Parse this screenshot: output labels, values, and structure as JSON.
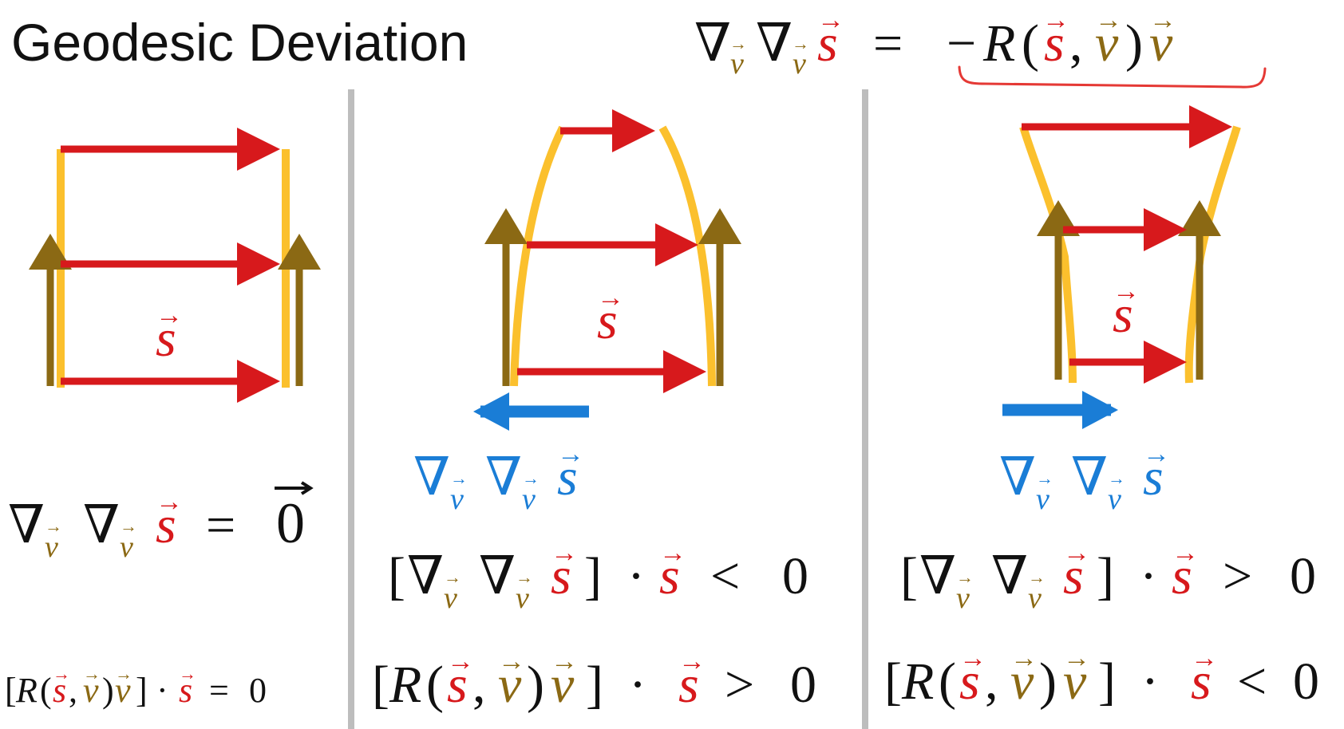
{
  "title": "Geodesic Deviation",
  "glyphs": {
    "nabla": "∇",
    "v": "v",
    "s": "s",
    "R": "R",
    "arrow": "→",
    "zero": "0",
    "eq": "=",
    "minus": "−",
    "lparen": "(",
    "rparen": ")",
    "comma": ",",
    "lbracket": "[",
    "rbracket": "]",
    "dot": "·",
    "lt": "<",
    "gt": ">"
  },
  "colors": {
    "s_vector": "#d7191c",
    "v_vector": "#8b6914",
    "geodesic": "#fbc02d",
    "acceleration": "#1a7dd6",
    "divider": "#bdbdbd",
    "text": "#111111",
    "underline": "#e53935"
  },
  "panels": [
    {
      "name": "flat",
      "deviation_compare": "",
      "curvature_compare": ">",
      "curvature_zero": "0"
    },
    {
      "name": "converging",
      "deviation_compare": "<",
      "deviation_zero": "0",
      "curvature_compare": ">",
      "curvature_zero": "0"
    },
    {
      "name": "diverging",
      "deviation_compare": ">",
      "deviation_zero": "0",
      "curvature_compare": "<",
      "curvature_zero": "0"
    }
  ]
}
